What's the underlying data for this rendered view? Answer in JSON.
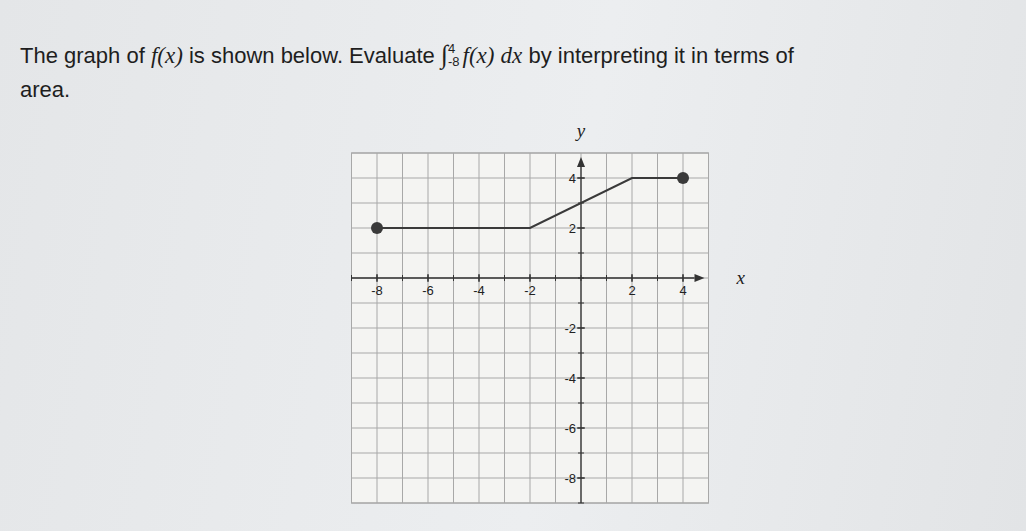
{
  "question": {
    "lead": "The graph of",
    "function": "f(x)",
    "middle": "is shown below. Evaluate",
    "integral": {
      "symbol": "∫",
      "lower": "-8",
      "upper": "4",
      "integrand": "f(x)",
      "differential": "dx"
    },
    "tail": "by interpreting it in terms of",
    "end": "area."
  },
  "chart_data": {
    "type": "line",
    "x_label": "x",
    "y_label": "y",
    "x": [
      -8,
      -2,
      2,
      4
    ],
    "values": [
      2,
      2,
      4,
      4
    ],
    "color": "#3a3a3a",
    "marker": "endpoint",
    "xlim": [
      -9,
      5
    ],
    "ylim": [
      -9,
      5
    ],
    "xticks": [
      -8,
      -6,
      -4,
      -2,
      2,
      4
    ],
    "yticks": [
      -8,
      -6,
      -4,
      -2,
      2,
      4
    ],
    "grid": true
  }
}
